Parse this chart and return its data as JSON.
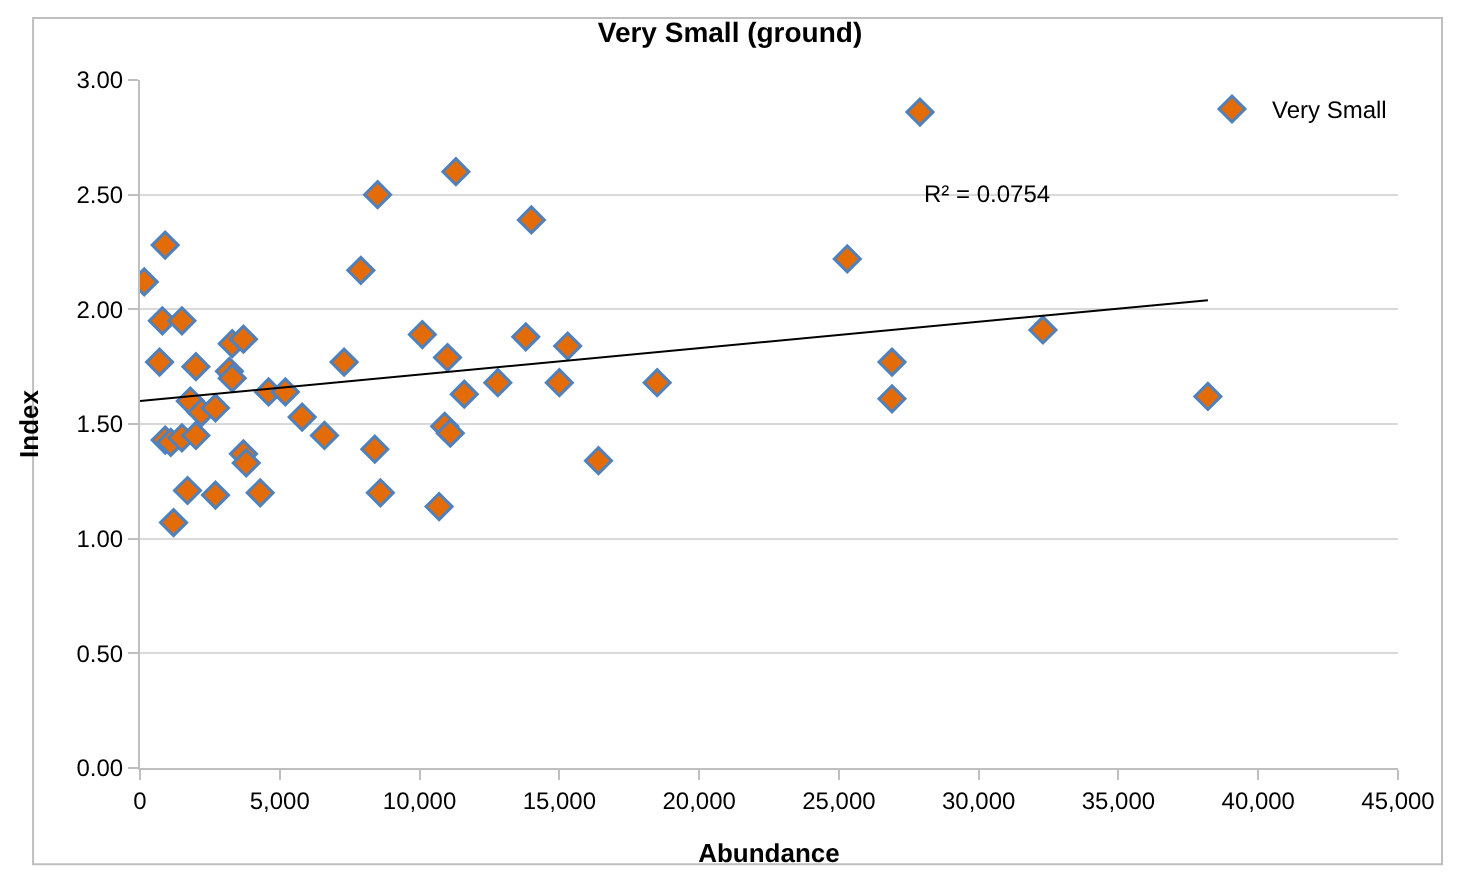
{
  "chart_data": {
    "type": "scatter",
    "title": "Very Small (ground)",
    "xlabel": "Abundance",
    "ylabel": "Index",
    "xlim": [
      0,
      45000
    ],
    "xticks": [
      {
        "value": 0,
        "label": "0"
      },
      {
        "value": 5000,
        "label": "5,000"
      },
      {
        "value": 10000,
        "label": "10,000"
      },
      {
        "value": 15000,
        "label": "15,000"
      },
      {
        "value": 20000,
        "label": "20,000"
      },
      {
        "value": 25000,
        "label": "25,000"
      },
      {
        "value": 30000,
        "label": "30,000"
      },
      {
        "value": 35000,
        "label": "35,000"
      },
      {
        "value": 40000,
        "label": "40,000"
      },
      {
        "value": 45000,
        "label": "45,000"
      }
    ],
    "ylim": [
      0,
      3
    ],
    "yticks": [
      {
        "value": 0,
        "label": "0.00"
      },
      {
        "value": 0.5,
        "label": "0.50"
      },
      {
        "value": 1,
        "label": "1.00"
      },
      {
        "value": 1.5,
        "label": "1.50"
      },
      {
        "value": 2,
        "label": "2.00"
      },
      {
        "value": 2.5,
        "label": "2.50"
      },
      {
        "value": 3,
        "label": "3.00"
      }
    ],
    "grid": "y",
    "legend": "top right",
    "annotations": [
      "R² = 0.0754"
    ],
    "series": [
      {
        "name": "Very Small",
        "color": "#e36c09",
        "marker": "diamond",
        "x": [
          150,
          900,
          800,
          700,
          900,
          1100,
          1200,
          1500,
          1500,
          1700,
          1800,
          2000,
          2000,
          2200,
          2700,
          2700,
          3200,
          3300,
          3300,
          3700,
          3700,
          3800,
          4300,
          4600,
          5200,
          5800,
          6600,
          7300,
          7900,
          8400,
          8500,
          8600,
          10100,
          10700,
          10900,
          11000,
          11100,
          11300,
          11600,
          12800,
          13800,
          14000,
          15000,
          15300,
          16400,
          18500,
          25300,
          26900,
          26900,
          27900,
          32300,
          38200
        ],
        "values": [
          2.12,
          2.28,
          1.95,
          1.77,
          1.43,
          1.42,
          1.07,
          1.44,
          1.95,
          1.21,
          1.6,
          1.75,
          1.45,
          1.55,
          1.57,
          1.19,
          1.73,
          1.7,
          1.85,
          1.87,
          1.37,
          1.33,
          1.2,
          1.64,
          1.64,
          1.53,
          1.45,
          1.77,
          2.17,
          1.39,
          2.5,
          1.2,
          1.89,
          1.14,
          1.49,
          1.79,
          1.46,
          2.6,
          1.63,
          1.68,
          1.88,
          2.39,
          1.68,
          1.84,
          1.34,
          1.68,
          2.22,
          1.77,
          1.61,
          2.86,
          1.91,
          1.62
        ]
      },
      {
        "color": "#000000",
        "type": "line",
        "marker": "none",
        "x": [
          0,
          38200
        ],
        "values": [
          1.6,
          2.04
        ]
      }
    ]
  }
}
